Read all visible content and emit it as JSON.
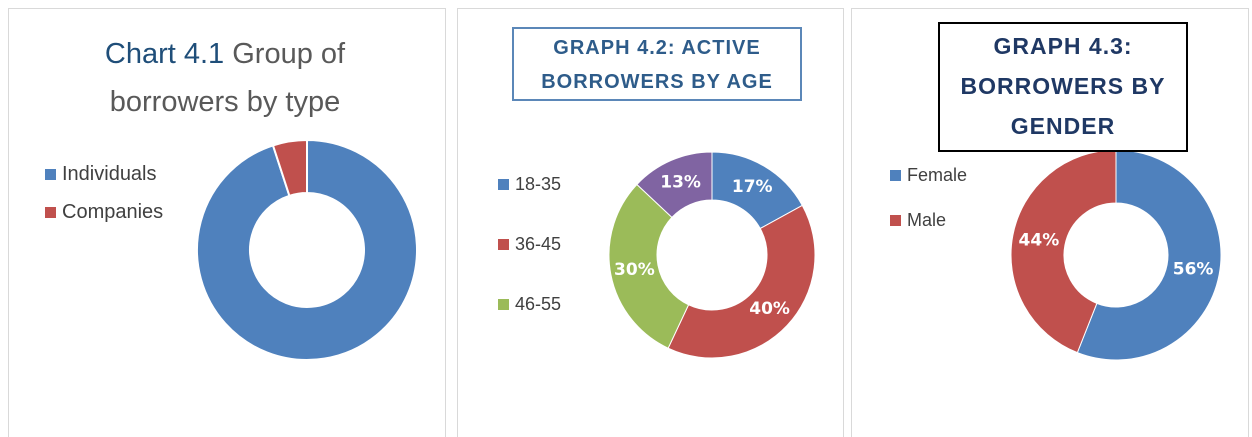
{
  "chart_data": [
    {
      "type": "donut",
      "title": [
        "Chart 4.1",
        "Group of borrowers by type"
      ],
      "categories": [
        "Individuals",
        "Companies"
      ],
      "values": [
        95,
        5
      ],
      "colors": [
        "#4f81bd",
        "#c0504d"
      ],
      "legend": "left"
    },
    {
      "type": "donut",
      "title": "GRAPH 4.2: ACTIVE BORROWERS BY AGE",
      "categories": [
        "18-35",
        "36-45",
        "46-55",
        null
      ],
      "values": [
        17,
        40,
        30,
        13
      ],
      "value_labels": [
        "17%",
        "40%",
        "30%",
        "13%"
      ],
      "colors": [
        "#4f81bd",
        "#c0504d",
        "#9bbb59",
        "#8064a2"
      ],
      "legend": "left"
    },
    {
      "type": "donut",
      "title": "GRAPH 4.3: BORROWERS BY GENDER",
      "categories": [
        "Female",
        "Male"
      ],
      "values": [
        56,
        44
      ],
      "value_labels": [
        "56%",
        "44%"
      ],
      "colors": [
        "#4f81bd",
        "#c0504d"
      ],
      "legend": "left"
    }
  ]
}
